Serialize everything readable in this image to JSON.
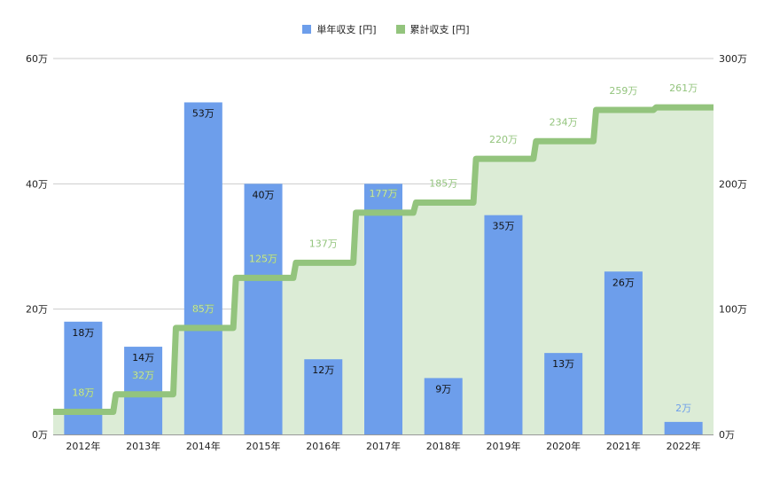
{
  "colors": {
    "bar": "#6d9eeb",
    "cumulative_line": "#93c47d",
    "cumulative_fill": "#dcecd6",
    "grid": "#cccccc",
    "text": "#222222"
  },
  "legend": [
    {
      "name": "単年収支 [円]",
      "color": "#6d9eeb"
    },
    {
      "name": "累計収支 [円]",
      "color": "#93c47d"
    }
  ],
  "chart_data": {
    "type": "bar",
    "categories": [
      "2012年",
      "2013年",
      "2014年",
      "2015年",
      "2016年",
      "2017年",
      "2018年",
      "2019年",
      "2020年",
      "2021年",
      "2022年"
    ],
    "series": [
      {
        "name": "単年収支 [円]",
        "axis": "left",
        "type": "bar",
        "values": [
          18,
          14,
          53,
          40,
          12,
          40,
          9,
          35,
          13,
          26,
          2
        ],
        "labels": [
          "18万",
          "14万",
          "53万",
          "40万",
          "12万",
          "",
          "9万",
          "35万",
          "13万",
          "26万",
          "2万"
        ]
      },
      {
        "name": "累計収支 [円]",
        "axis": "right",
        "type": "stepped-area",
        "values": [
          18,
          32,
          85,
          125,
          137,
          177,
          185,
          220,
          234,
          259,
          261
        ],
        "labels": [
          "18万",
          "32万",
          "85万",
          "125万",
          "137万",
          "177万",
          "185万",
          "220万",
          "234万",
          "259万",
          "261万"
        ]
      }
    ],
    "left_axis": {
      "ylim": [
        0,
        60
      ],
      "ticks": [
        0,
        20,
        40,
        60
      ],
      "tick_labels": [
        "0万",
        "20万",
        "40万",
        "60万"
      ]
    },
    "right_axis": {
      "ylim": [
        0,
        300
      ],
      "ticks": [
        0,
        100,
        200,
        300
      ],
      "tick_labels": [
        "0万",
        "100万",
        "200万",
        "300万"
      ]
    },
    "legend_position": "top",
    "grid": true
  }
}
